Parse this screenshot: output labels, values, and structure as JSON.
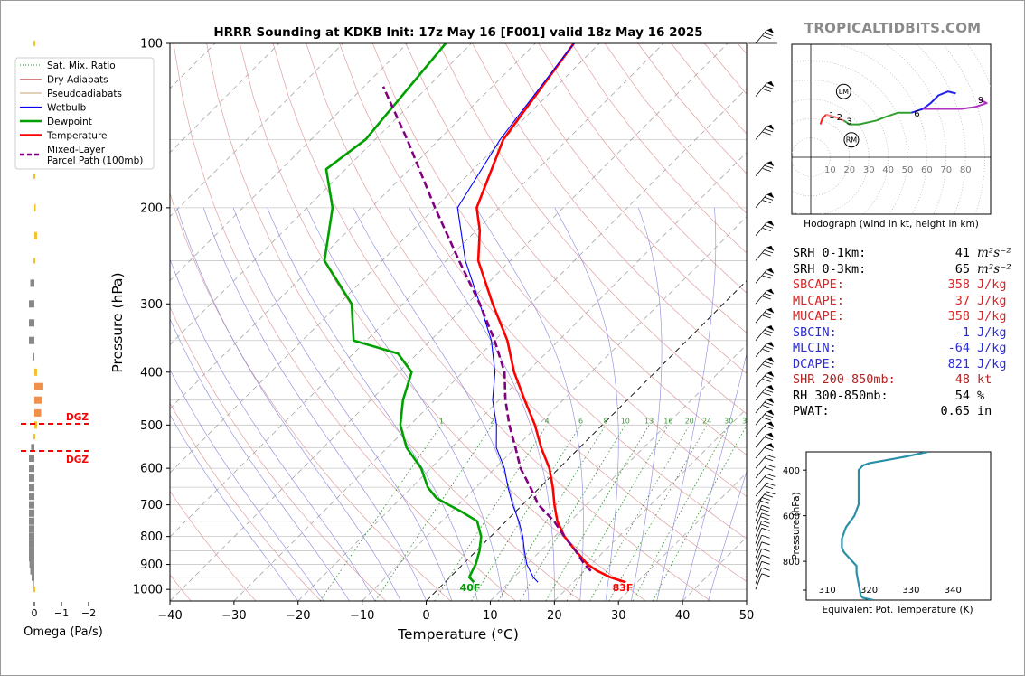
{
  "title": "HRRR Sounding at KDKB Init: 17z May 16 [F001] valid 18z May 16 2025",
  "site": "TROPICALTIDBITS.COM",
  "skewt": {
    "xlabel": "Temperature (°C)",
    "ylabel": "Pressure (hPa)",
    "xticks": [
      "−40",
      "−30",
      "−20",
      "−10",
      "0",
      "10",
      "20",
      "30",
      "40",
      "50"
    ],
    "yticks": [
      "100",
      "200",
      "300",
      "400",
      "500",
      "600",
      "700",
      "800",
      "900",
      "1000"
    ],
    "mixratio_labels": [
      "1",
      "2",
      "4",
      "6",
      "8",
      "10",
      "13",
      "16",
      "20",
      "24",
      "30",
      "36"
    ],
    "surface_temp_label": "83F",
    "surface_dew_label": "40F",
    "dgz_label_top": "DGZ",
    "dgz_label_bottom": "DGZ"
  },
  "legend": [
    {
      "label": "Sat. Mix. Ratio",
      "color": "#2e8b2e",
      "style": "dotted"
    },
    {
      "label": "Dry Adiabats",
      "color": "#d88080",
      "style": "solid"
    },
    {
      "label": "Pseudoadiabats",
      "color": "#c7a070",
      "style": "solid"
    },
    {
      "label": "Wetbulb",
      "color": "#0000ff",
      "style": "solid"
    },
    {
      "label": "Dewpoint",
      "color": "#00a000",
      "style": "solid"
    },
    {
      "label": "Temperature",
      "color": "#ff0000",
      "style": "solid"
    },
    {
      "label": "Mixed-Layer",
      "label2": "Parcel Path (100mb)",
      "color": "#800080",
      "style": "dashed"
    }
  ],
  "omega": {
    "xlabel": "Omega (Pa/s)",
    "xticks": [
      "0",
      "−1",
      "−2"
    ]
  },
  "hodograph": {
    "caption": "Hodograph (wind in kt, height in km)",
    "ring_labels": [
      "10",
      "20",
      "30",
      "40",
      "50",
      "60",
      "70",
      "80"
    ],
    "height_labels": [
      "1",
      "2",
      "3",
      "6",
      "9"
    ],
    "markers": [
      "LM",
      "RM"
    ]
  },
  "theta_e": {
    "xlabel": "Equivalent Pot. Temperature (K)",
    "ylabel": "Pressure (hPa)",
    "xticks": [
      "310",
      "320",
      "330",
      "340"
    ],
    "yticks": [
      "400",
      "600",
      "800"
    ]
  },
  "stats": [
    {
      "label": "SRH 0-1km:",
      "value": "41",
      "unit": "m²s⁻²",
      "color": "#000000"
    },
    {
      "label": "SRH 0-3km:",
      "value": "65",
      "unit": "m²s⁻²",
      "color": "#000000"
    },
    {
      "label": "SBCAPE:",
      "value": "358",
      "unit": "J/kg",
      "color": "#d62728"
    },
    {
      "label": "MLCAPE:",
      "value": "37",
      "unit": "J/kg",
      "color": "#d62728"
    },
    {
      "label": "MUCAPE:",
      "value": "358",
      "unit": "J/kg",
      "color": "#d62728"
    },
    {
      "label": "SBCIN:",
      "value": "-1",
      "unit": "J/kg",
      "color": "#2c2cd6"
    },
    {
      "label": "MLCIN:",
      "value": "-64",
      "unit": "J/kg",
      "color": "#2c2cd6"
    },
    {
      "label": "DCAPE:",
      "value": "821",
      "unit": "J/kg",
      "color": "#2c2cd6"
    },
    {
      "label": "SHR 200-850mb:",
      "value": "48",
      "unit": "kt",
      "color": "#b22222"
    },
    {
      "label": "RH 300-850mb:",
      "value": "54",
      "unit": "%",
      "color": "#000000"
    },
    {
      "label": "PWAT:",
      "value": "0.65",
      "unit": "in",
      "color": "#000000"
    }
  ],
  "chart_data": [
    {
      "type": "line",
      "title": "HRRR Sounding at KDKB Init: 17z May 16 [F001] valid 18z May 16 2025",
      "xlabel": "Temperature (°C)",
      "ylabel": "Pressure (hPa)",
      "xlim": [
        -40,
        50
      ],
      "ylim": [
        1050,
        100
      ],
      "y_scale": "log",
      "skew": "45°",
      "series": [
        {
          "name": "Temperature",
          "color": "#ff0000",
          "pressure": [
            970,
            950,
            925,
            900,
            850,
            800,
            750,
            700,
            650,
            600,
            550,
            500,
            450,
            400,
            350,
            300,
            250,
            220,
            200,
            150,
            100
          ],
          "values": [
            28.2,
            25.0,
            22.0,
            19.5,
            15.5,
            11.5,
            8.0,
            5.0,
            2.0,
            -1.5,
            -6.0,
            -10.5,
            -16.0,
            -22.0,
            -28.0,
            -36.0,
            -45.0,
            -49.5,
            -53.5,
            -60.0,
            -64.0
          ]
        },
        {
          "name": "Dewpoint",
          "color": "#00a000",
          "pressure": [
            970,
            950,
            925,
            900,
            850,
            800,
            750,
            720,
            700,
            680,
            650,
            600,
            550,
            500,
            450,
            400,
            370,
            350,
            300,
            250,
            200,
            170,
            150,
            100
          ],
          "values": [
            4.5,
            3.0,
            2.5,
            2.0,
            0.5,
            -1.5,
            -4.5,
            -8.5,
            -11.5,
            -14.5,
            -17.5,
            -21.5,
            -27.0,
            -31.5,
            -35.0,
            -38.0,
            -43.0,
            -52.0,
            -58.0,
            -69.0,
            -76.0,
            -83.0,
            -81.5,
            -84.0
          ]
        },
        {
          "name": "Wetbulb",
          "color": "#0000ff",
          "pressure": [
            970,
            950,
            900,
            850,
            800,
            750,
            700,
            650,
            600,
            550,
            500,
            450,
            400,
            350,
            300,
            250,
            200,
            150,
            100
          ],
          "values": [
            14.5,
            13.0,
            10.0,
            7.5,
            5.0,
            2.0,
            -1.5,
            -5.0,
            -8.5,
            -13.0,
            -16.5,
            -21.0,
            -25.0,
            -30.5,
            -38.0,
            -47.0,
            -56.5,
            -60.5,
            -64.0
          ]
        },
        {
          "name": "Mixed-Layer Parcel Path (100mb)",
          "color": "#800080",
          "style": "dashed",
          "pressure": [
            925,
            900,
            850,
            800,
            750,
            700,
            650,
            600,
            550,
            500,
            450,
            400,
            350,
            300,
            250,
            200,
            150,
            120
          ],
          "values": [
            21.0,
            19.0,
            15.5,
            11.5,
            7.5,
            2.5,
            -1.5,
            -6.0,
            -10.0,
            -14.5,
            -19.0,
            -23.5,
            -30.0,
            -38.0,
            -48.0,
            -60.0,
            -75.0,
            -87.0
          ]
        }
      ]
    },
    {
      "type": "bar",
      "xlabel": "Omega (Pa/s)",
      "xlim": [
        0.2,
        -2.2
      ],
      "categories": [
        1000,
        975,
        950,
        925,
        900,
        875,
        850,
        825,
        800,
        775,
        750,
        725,
        700,
        675,
        650,
        625,
        600,
        575,
        550,
        525,
        500,
        475,
        450,
        425,
        400,
        375,
        350,
        325,
        300,
        275,
        250,
        225,
        200,
        175,
        150,
        125,
        100
      ],
      "values": [
        0.0,
        -0.02,
        -0.1,
        -0.15,
        -0.18,
        -0.2,
        -0.2,
        -0.2,
        -0.2,
        -0.2,
        -0.2,
        -0.2,
        -0.2,
        -0.2,
        -0.2,
        -0.2,
        -0.2,
        -0.2,
        -0.12,
        0.0,
        0.1,
        0.25,
        0.28,
        0.33,
        0.1,
        -0.05,
        -0.2,
        -0.2,
        -0.2,
        -0.15,
        0.0,
        0.1,
        0.05,
        0.0,
        0.0,
        0.0,
        0.0
      ],
      "dgz_pressure": [
        500,
        560
      ]
    },
    {
      "type": "line",
      "title": "Hodograph (wind in kt, height in km)",
      "xlabel": "u (kt)",
      "ylabel": "v (kt)",
      "xlim": [
        -10,
        93
      ],
      "ylim": [
        -30,
        60
      ],
      "series": [
        {
          "name": "0-1 km",
          "color": "#ff2020",
          "x": [
            5,
            6,
            8
          ],
          "y": [
            17,
            20,
            22
          ]
        },
        {
          "name": "1-3 km",
          "color": "#ff8080",
          "x": [
            8,
            12,
            17
          ],
          "y": [
            22,
            21,
            19
          ]
        },
        {
          "name": "3-6 km",
          "color": "#30a030",
          "x": [
            17,
            20,
            25,
            34,
            39,
            45,
            52
          ],
          "y": [
            19,
            17,
            17,
            19,
            21,
            23,
            23
          ]
        },
        {
          "name": "6-9 km",
          "color": "#2020ee",
          "x": [
            52,
            58,
            62,
            66,
            71,
            75
          ],
          "y": [
            23,
            25,
            28,
            32,
            34,
            33
          ]
        },
        {
          "name": "9+ km",
          "color": "#b030c0",
          "x": [
            58,
            66,
            78,
            85,
            91,
            87
          ],
          "y": [
            25,
            25,
            25,
            26,
            28,
            30
          ]
        }
      ],
      "markers": [
        {
          "name": "LM",
          "x": 17,
          "y": 34
        },
        {
          "name": "RM",
          "x": 21,
          "y": 9
        }
      ]
    },
    {
      "type": "line",
      "xlabel": "Equivalent Pot. Temperature (K)",
      "ylabel": "Pressure (hPa)",
      "xlim": [
        305,
        349
      ],
      "ylim": [
        970,
        320
      ],
      "series": [
        {
          "name": "Theta-E",
          "color": "#2a8fa8",
          "pressure": [
            970,
            960,
            950,
            900,
            850,
            820,
            800,
            760,
            740,
            700,
            650,
            600,
            550,
            500,
            450,
            400,
            380,
            370,
            350,
            340,
            320
          ],
          "values": [
            321.0,
            318.5,
            318.0,
            317.5,
            317.0,
            317.0,
            316.0,
            314.0,
            313.5,
            313.5,
            314.5,
            316.5,
            317.5,
            317.5,
            317.5,
            317.5,
            318.5,
            320.0,
            326.0,
            329.0,
            334.0
          ]
        }
      ]
    }
  ]
}
